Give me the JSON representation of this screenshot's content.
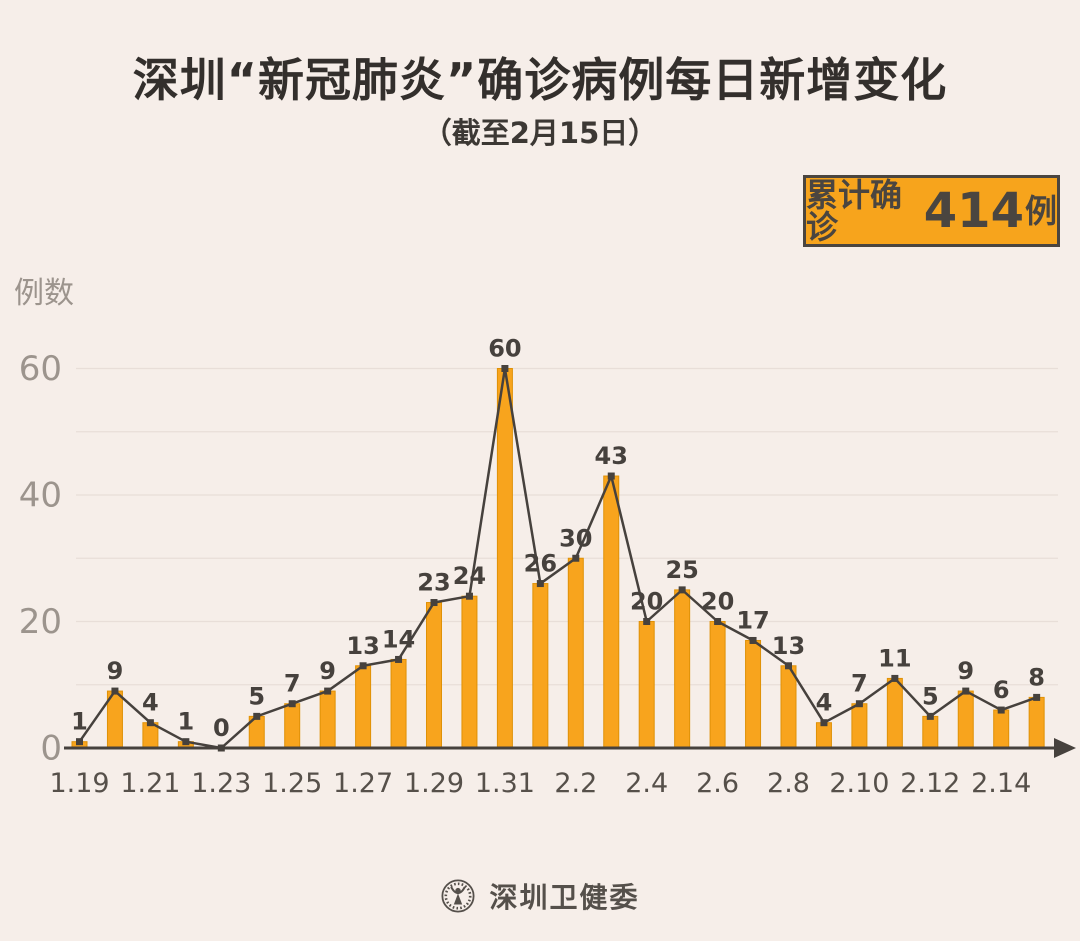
{
  "title": "深圳“新冠肺炎”确诊病例每日新增变化",
  "subtitle": "（截至2月15日）",
  "badge": {
    "prefix": "累计确诊",
    "value": "414",
    "suffix": "例"
  },
  "y_axis_title": "例数",
  "footer": {
    "logo": "szhc-seal-logo",
    "org_name": "深圳卫健委"
  },
  "colors": {
    "background": "#F6EEE9",
    "bar": "#F8A41D",
    "bar_edge": "#DF9107",
    "line": "#46413D",
    "grid": "#E8DED8",
    "axis_text": "#9C948D",
    "tick_text": "#56504A",
    "value_label": "#46413D",
    "badge_bg": "#F7A41C",
    "badge_border": "#4A4540",
    "title_text": "#332F2C"
  },
  "chart_data": {
    "type": "bar",
    "overlay": "line",
    "title": "深圳“新冠肺炎”确诊病例每日新增变化（截至2月15日）",
    "xlabel": "",
    "ylabel": "例数",
    "categories": [
      "1.19",
      "1.20",
      "1.21",
      "1.22",
      "1.23",
      "1.24",
      "1.25",
      "1.26",
      "1.27",
      "1.28",
      "1.29",
      "1.30",
      "1.31",
      "2.1",
      "2.2",
      "2.3",
      "2.4",
      "2.5",
      "2.6",
      "2.7",
      "2.8",
      "2.9",
      "2.10",
      "2.11",
      "2.12",
      "2.13",
      "2.14",
      "2.15"
    ],
    "values": [
      1,
      9,
      4,
      1,
      0,
      5,
      7,
      9,
      13,
      14,
      23,
      24,
      60,
      26,
      30,
      43,
      20,
      25,
      20,
      17,
      13,
      4,
      7,
      11,
      5,
      9,
      6,
      8
    ],
    "visible_x_ticks": [
      "1.19",
      "1.21",
      "1.23",
      "1.25",
      "1.27",
      "1.29",
      "1.31",
      "2.2",
      "2.4",
      "2.6",
      "2.8",
      "2.10",
      "2.12",
      "2.14"
    ],
    "x_tick_every": 2,
    "y_ticks": [
      0,
      20,
      40,
      60
    ],
    "y_gridline_step": 10,
    "ylim": [
      0,
      63
    ],
    "legend": "none",
    "grid": "horizontal",
    "cumulative_total": 414
  }
}
